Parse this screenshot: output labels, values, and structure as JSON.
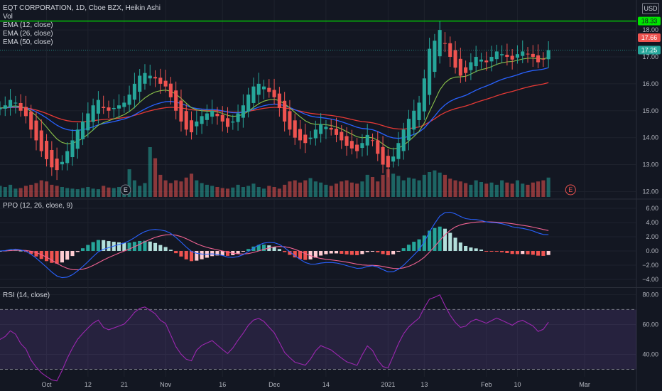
{
  "header": {
    "symbol_line": "EQT CORPORATION, 1D, Cboe BZX, Heikin Ashi",
    "indicators": [
      "Vol",
      "EMA (12, close)",
      "EMA (26, close)",
      "EMA (50, close)"
    ],
    "currency": "USD"
  },
  "price_badges": [
    {
      "label": "18.33",
      "value": 18.33,
      "bg": "#00e600",
      "fg": "#131722"
    },
    {
      "label": "17.66",
      "value": 17.66,
      "bg": "#ef5350",
      "fg": "#ffffff"
    },
    {
      "label": "17.25",
      "value": 17.25,
      "bg": "#26a69a",
      "fg": "#ffffff"
    }
  ],
  "ppo_legend": "PPO (12, 26, close, 9)",
  "rsi_legend": "RSI (14, close)",
  "earnings_marker": "E",
  "chart_data": {
    "type": "candlestick",
    "colors": {
      "up": "#26a69a",
      "down": "#ef5350",
      "ema12": "#8bc34a",
      "ema26": "#2962ff",
      "ema50": "#e53935",
      "ppo": "#2962ff",
      "signal": "#f06292",
      "rsi": "#9c27b0",
      "hline": "#00e600"
    },
    "price_axis": {
      "range": [
        11.8,
        18.9
      ],
      "ticks": [
        12.0,
        13.0,
        14.0,
        15.0,
        16.0,
        17.0,
        18.0
      ],
      "labels": [
        "12.00",
        "13.00",
        "14.00",
        "15.00",
        "16.00",
        "17.00",
        "18.00"
      ]
    },
    "horizontal_line": 18.33,
    "close_line": 17.25,
    "x_ticks": [
      {
        "label": "Oct",
        "index": 9
      },
      {
        "label": "12",
        "index": 17
      },
      {
        "label": "21",
        "index": 24
      },
      {
        "label": "Nov",
        "index": 32
      },
      {
        "label": "16",
        "index": 43
      },
      {
        "label": "Dec",
        "index": 53
      },
      {
        "label": "14",
        "index": 63
      },
      {
        "label": "2021",
        "index": 75
      },
      {
        "label": "13",
        "index": 82
      },
      {
        "label": "Feb",
        "index": 94
      },
      {
        "label": "10",
        "index": 100
      },
      {
        "label": "Mar",
        "index": 113
      }
    ],
    "x_range": [
      0,
      123
    ],
    "close": [
      15.1,
      15.2,
      15.4,
      15.3,
      15.0,
      14.8,
      14.3,
      13.9,
      13.5,
      13.2,
      12.9,
      12.8,
      13.1,
      13.5,
      13.9,
      14.3,
      14.6,
      14.9,
      15.2,
      15.4,
      15.1,
      15.0,
      15.1,
      15.2,
      15.3,
      15.6,
      16.0,
      16.3,
      16.4,
      16.3,
      16.2,
      16.0,
      15.9,
      15.5,
      15.0,
      14.6,
      14.3,
      14.2,
      14.6,
      14.8,
      14.9,
      15.0,
      14.8,
      14.6,
      14.4,
      14.6,
      14.9,
      15.2,
      15.6,
      15.9,
      16.0,
      15.9,
      15.7,
      15.5,
      15.1,
      14.6,
      14.3,
      14.0,
      13.9,
      13.8,
      14.0,
      14.3,
      14.5,
      14.4,
      14.3,
      14.1,
      13.9,
      13.7,
      13.6,
      13.5,
      13.8,
      14.1,
      13.9,
      13.4,
      13.0,
      12.9,
      13.3,
      13.8,
      14.3,
      14.7,
      15.0,
      15.3,
      16.2,
      17.3,
      17.6,
      18.0,
      17.5,
      17.0,
      16.6,
      16.3,
      16.4,
      16.8,
      17.0,
      16.9,
      16.8,
      17.0,
      17.2,
      17.1,
      17.0,
      16.9,
      17.1,
      17.2,
      17.1,
      17.0,
      16.8,
      16.9,
      17.25
    ],
    "volume": [
      0.2,
      0.18,
      0.22,
      0.15,
      0.16,
      0.2,
      0.22,
      0.25,
      0.3,
      0.28,
      0.22,
      0.2,
      0.18,
      0.16,
      0.15,
      0.14,
      0.16,
      0.18,
      0.15,
      0.14,
      0.2,
      0.17,
      0.16,
      0.18,
      0.15,
      0.5,
      0.3,
      0.2,
      0.25,
      0.9,
      0.7,
      0.4,
      0.3,
      0.25,
      0.3,
      0.28,
      0.35,
      0.42,
      0.3,
      0.25,
      0.22,
      0.2,
      0.18,
      0.16,
      0.15,
      0.17,
      0.22,
      0.18,
      0.2,
      0.24,
      0.18,
      0.15,
      0.2,
      0.18,
      0.15,
      0.22,
      0.28,
      0.3,
      0.26,
      0.3,
      0.34,
      0.28,
      0.26,
      0.22,
      0.2,
      0.24,
      0.28,
      0.3,
      0.26,
      0.24,
      0.28,
      0.4,
      0.36,
      0.28,
      0.4,
      0.5,
      0.42,
      0.38,
      0.3,
      0.35,
      0.33,
      0.3,
      0.4,
      0.45,
      0.48,
      0.44,
      0.4,
      0.33,
      0.3,
      0.28,
      0.25,
      0.22,
      0.3,
      0.27,
      0.24,
      0.26,
      0.22,
      0.3,
      0.26,
      0.24,
      0.3,
      0.24,
      0.22,
      0.26,
      0.28,
      0.3,
      0.35
    ],
    "ppo_axis": {
      "range": [
        -5.0,
        7.0
      ],
      "ticks": [
        -4,
        -2,
        0,
        2,
        4,
        6
      ],
      "labels": [
        "−4.00",
        "−2.00",
        "0.00",
        "2.00",
        "4.00",
        "6.00"
      ]
    },
    "rsi_axis": {
      "range": [
        25,
        84
      ],
      "ticks": [
        40,
        60,
        80
      ],
      "labels": [
        "40.00",
        "60.00",
        "80.00"
      ],
      "bands": [
        70,
        30
      ]
    }
  }
}
